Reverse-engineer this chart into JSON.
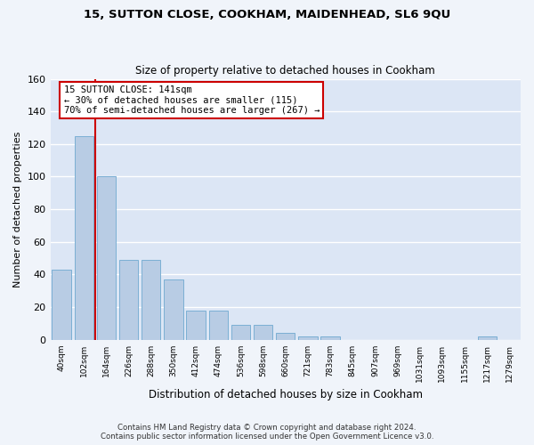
{
  "title": "15, SUTTON CLOSE, COOKHAM, MAIDENHEAD, SL6 9QU",
  "subtitle": "Size of property relative to detached houses in Cookham",
  "xlabel": "Distribution of detached houses by size in Cookham",
  "ylabel": "Number of detached properties",
  "bar_labels": [
    "40sqm",
    "102sqm",
    "164sqm",
    "226sqm",
    "288sqm",
    "350sqm",
    "412sqm",
    "474sqm",
    "536sqm",
    "598sqm",
    "660sqm",
    "721sqm",
    "783sqm",
    "845sqm",
    "907sqm",
    "969sqm",
    "1031sqm",
    "1093sqm",
    "1155sqm",
    "1217sqm",
    "1279sqm"
  ],
  "bar_values": [
    43,
    125,
    100,
    49,
    49,
    37,
    18,
    18,
    9,
    9,
    4,
    2,
    2,
    0,
    0,
    0,
    0,
    0,
    0,
    2,
    0
  ],
  "bar_color": "#b8cce4",
  "bar_edgecolor": "#7bafd4",
  "vline_x_index": 1.5,
  "property_line_label": "15 SUTTON CLOSE: 141sqm",
  "annotation_line1": "← 30% of detached houses are smaller (115)",
  "annotation_line2": "70% of semi-detached houses are larger (267) →",
  "vline_color": "#cc0000",
  "box_edgecolor": "#cc0000",
  "ylim": [
    0,
    160
  ],
  "yticks": [
    0,
    20,
    40,
    60,
    80,
    100,
    120,
    140,
    160
  ],
  "bg_color": "#dce6f5",
  "grid_color": "#ffffff",
  "footer_line1": "Contains HM Land Registry data © Crown copyright and database right 2024.",
  "footer_line2": "Contains public sector information licensed under the Open Government Licence v3.0."
}
